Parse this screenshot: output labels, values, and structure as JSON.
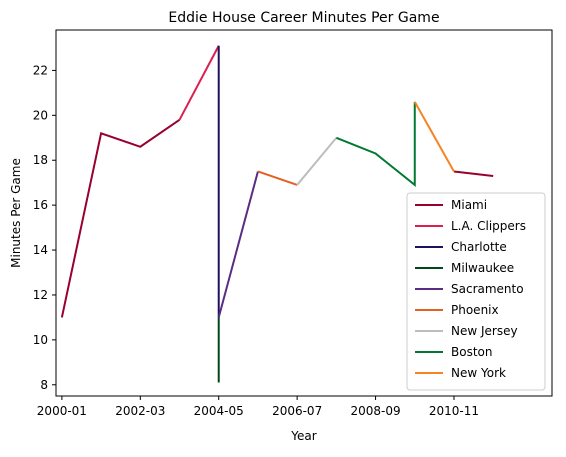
{
  "chart_data": {
    "type": "line",
    "title": "Eddie House Career Minutes Per Game",
    "xlabel": "Year",
    "ylabel": "Minutes Per Game",
    "x_ticks": [
      "2000-01",
      "2002-03",
      "2004-05",
      "2006-07",
      "2008-09",
      "2010-11"
    ],
    "y_ticks": [
      "8",
      "10",
      "12",
      "14",
      "16",
      "18",
      "20",
      "22"
    ],
    "xlim": [
      "2000-01",
      "2012-13"
    ],
    "ylim": [
      7.5,
      23.8
    ],
    "grid": false,
    "legend_position": "lower-right",
    "series": [
      {
        "name": "Miami",
        "color": "#98002E",
        "points": [
          [
            "2000-01",
            11.0
          ],
          [
            "2001-02",
            19.2
          ],
          [
            "2002-03",
            18.6
          ],
          [
            "2003-04",
            19.8
          ]
        ],
        "segments": [
          [
            [
              "2010-11",
              17.5
            ],
            [
              "2011-12",
              17.3
            ]
          ]
        ]
      },
      {
        "name": "L.A. Clippers",
        "color": "#DC1F4E",
        "points": [
          [
            "2003-04",
            19.8
          ],
          [
            "2004-05",
            23.1
          ]
        ]
      },
      {
        "name": "Charlotte",
        "color": "#1D1160",
        "points": [
          [
            "2004-05",
            23.1
          ],
          [
            "2004-05",
            11.0
          ]
        ]
      },
      {
        "name": "Milwaukee",
        "color": "#00471B",
        "points": [
          [
            "2004-05",
            11.0
          ],
          [
            "2004-05",
            8.1
          ]
        ]
      },
      {
        "name": "Sacramento",
        "color": "#5A2D81",
        "points": [
          [
            "2004-05",
            11.0
          ],
          [
            "2005-06",
            17.5
          ]
        ]
      },
      {
        "name": "Phoenix",
        "color": "#E56020",
        "points": [
          [
            "2005-06",
            17.5
          ],
          [
            "2006-07",
            16.9
          ]
        ]
      },
      {
        "name": "New Jersey",
        "color": "#BDBDBD",
        "points": [
          [
            "2006-07",
            16.9
          ],
          [
            "2007-08",
            19.0
          ]
        ]
      },
      {
        "name": "Boston",
        "color": "#007A33",
        "points": [
          [
            "2007-08",
            19.0
          ],
          [
            "2008-09",
            18.3
          ],
          [
            "2009-10",
            16.9
          ],
          [
            "2009-10",
            20.6
          ]
        ]
      },
      {
        "name": "New York",
        "color": "#F58426",
        "points": [
          [
            "2009-10",
            20.6
          ],
          [
            "2010-11",
            17.5
          ]
        ]
      }
    ]
  }
}
